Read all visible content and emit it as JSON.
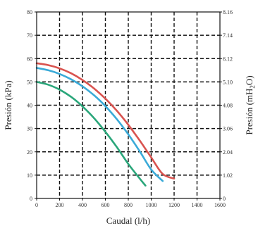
{
  "chart_data": {
    "type": "line",
    "xlabel": "Caudal (l/h)",
    "ylabel": "Presión (kPa)",
    "y2label": "Presión (mH",
    "y2label_sub": "2",
    "y2label_end": "O)",
    "xlim": [
      0,
      1600
    ],
    "ylim": [
      0,
      80
    ],
    "x_ticks": [
      0,
      200,
      400,
      600,
      800,
      1000,
      1200,
      1400,
      1600
    ],
    "x_tick_labels": [
      "0",
      "200",
      "400",
      "600",
      "800",
      "1000",
      "1200",
      "1400",
      "1600"
    ],
    "y_ticks": [
      0,
      10,
      20,
      30,
      40,
      50,
      60,
      70,
      80
    ],
    "y_tick_labels": [
      "0",
      "10",
      "20",
      "30",
      "40",
      "50",
      "60",
      "70",
      "80"
    ],
    "y2_ticks": [
      0,
      10,
      20,
      30,
      40,
      50,
      60,
      70,
      80
    ],
    "y2_tick_labels": [
      "0",
      "1.02",
      "2.04",
      "3.06",
      "4.08",
      "5.10",
      "6.12",
      "7.14",
      "8.16"
    ],
    "grid": true,
    "series": [
      {
        "color": "#d9534f",
        "x": [
          0,
          100,
          200,
          300,
          400,
          500,
          600,
          700,
          800,
          900,
          1000,
          1100,
          1200
        ],
        "y": [
          58,
          57.2,
          55.8,
          53.7,
          50.8,
          47.2,
          42.8,
          37.6,
          31.6,
          24.8,
          17.6,
          10.5,
          8.5
        ]
      },
      {
        "color": "#3aaad8",
        "x": [
          0,
          100,
          200,
          300,
          400,
          500,
          600,
          700,
          800,
          900,
          1000,
          1100
        ],
        "y": [
          56,
          55,
          53.4,
          51.1,
          48.1,
          44.3,
          39.6,
          34.0,
          27.5,
          20.2,
          12.4,
          7.5
        ]
      },
      {
        "color": "#2aa67a",
        "x": [
          0,
          100,
          200,
          300,
          400,
          500,
          600,
          700,
          800,
          900,
          950
        ],
        "y": [
          50,
          48.8,
          46.7,
          43.6,
          39.5,
          34.5,
          28.6,
          22.0,
          14.8,
          8.5,
          5.5
        ]
      }
    ]
  }
}
